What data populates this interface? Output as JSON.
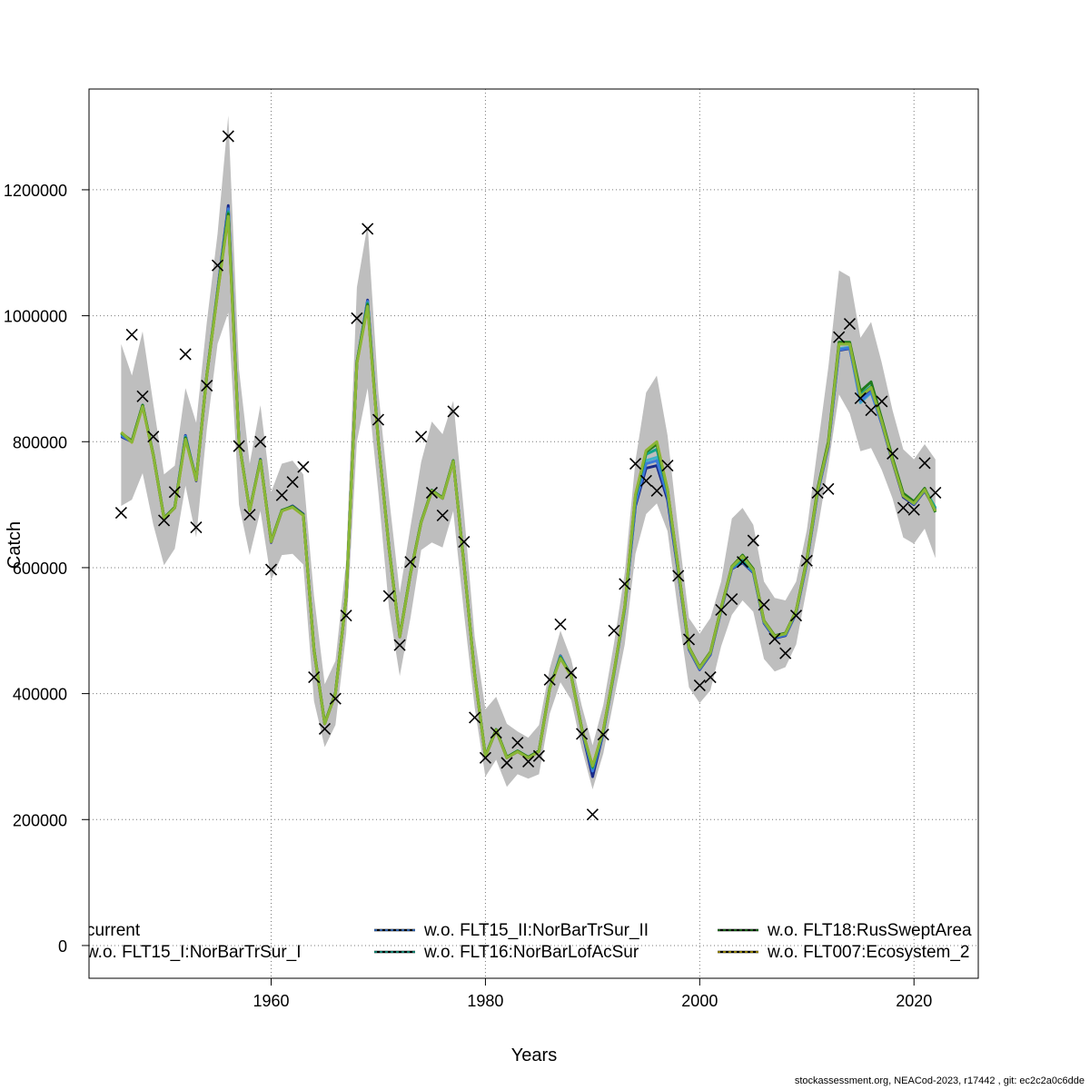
{
  "chart_data": {
    "type": "line",
    "xlabel": "Years",
    "ylabel": "Catch",
    "xlim": [
      1943,
      2026
    ],
    "ylim": [
      -52000,
      1360000
    ],
    "xticks": [
      1960,
      1980,
      2000,
      2020
    ],
    "yticks": [
      0,
      200000,
      400000,
      600000,
      800000,
      1000000,
      1200000
    ],
    "ytick_labels": [
      "0",
      "200000",
      "400000",
      "600000",
      "800000",
      "1000000",
      "1200000"
    ],
    "grid": true,
    "grid_style": "dotted",
    "legend_position": "bottom",
    "colors": {
      "band": "#bebebe",
      "observed": "#000000",
      "current": "#1a2a8a",
      "FLT15_I": "#3fb0c8",
      "FLT15_II": "#3c7ad8",
      "FLT16": "#13a38c",
      "FLT18": "#1e7a1e",
      "FLT007": "#b5a000",
      "visible_top": "#86b83a"
    },
    "years": [
      1946,
      1947,
      1948,
      1949,
      1950,
      1951,
      1952,
      1953,
      1954,
      1955,
      1956,
      1957,
      1958,
      1959,
      1960,
      1961,
      1962,
      1963,
      1964,
      1965,
      1966,
      1967,
      1968,
      1969,
      1970,
      1971,
      1972,
      1973,
      1974,
      1975,
      1976,
      1977,
      1978,
      1979,
      1980,
      1981,
      1982,
      1983,
      1984,
      1985,
      1986,
      1987,
      1988,
      1989,
      1990,
      1991,
      1992,
      1993,
      1994,
      1995,
      1996,
      1997,
      1998,
      1999,
      2000,
      2001,
      2002,
      2003,
      2004,
      2005,
      2006,
      2007,
      2008,
      2009,
      2010,
      2011,
      2012,
      2013,
      2014,
      2015,
      2016,
      2017,
      2018,
      2019,
      2020,
      2021,
      2022
    ],
    "band_upper": [
      955000,
      905000,
      975000,
      860000,
      748000,
      762000,
      885000,
      830000,
      990000,
      1130000,
      1318000,
      915000,
      765000,
      858000,
      720000,
      765000,
      770000,
      748000,
      555000,
      415000,
      452000,
      610000,
      1045000,
      1145000,
      880000,
      712000,
      560000,
      665000,
      768000,
      832000,
      812000,
      865000,
      688000,
      490000,
      375000,
      395000,
      352000,
      340000,
      330000,
      350000,
      440000,
      500000,
      455000,
      380000,
      318000,
      382000,
      480000,
      592000,
      770000,
      878000,
      905000,
      810000,
      660000,
      520000,
      495000,
      520000,
      578000,
      678000,
      695000,
      668000,
      578000,
      552000,
      548000,
      578000,
      660000,
      790000,
      918000,
      1072000,
      1062000,
      965000,
      990000,
      925000,
      850000,
      788000,
      772000,
      796000,
      772000
    ],
    "band_lower": [
      698000,
      708000,
      750000,
      668000,
      604000,
      630000,
      730000,
      648000,
      820000,
      955000,
      1005000,
      700000,
      620000,
      690000,
      580000,
      620000,
      622000,
      605000,
      388000,
      315000,
      350000,
      495000,
      800000,
      885000,
      720000,
      535000,
      428000,
      520000,
      628000,
      640000,
      632000,
      690000,
      528000,
      378000,
      268000,
      295000,
      252000,
      272000,
      265000,
      272000,
      368000,
      418000,
      390000,
      312000,
      248000,
      305000,
      392000,
      478000,
      622000,
      685000,
      702000,
      658000,
      528000,
      410000,
      385000,
      405000,
      475000,
      525000,
      548000,
      530000,
      455000,
      435000,
      442000,
      478000,
      568000,
      660000,
      762000,
      875000,
      845000,
      785000,
      790000,
      755000,
      710000,
      648000,
      638000,
      662000,
      615000
    ],
    "series": [
      {
        "name": "current",
        "values": [
          808000,
          800000,
          858000,
          778000,
          678000,
          695000,
          810000,
          738000,
          905000,
          1040000,
          1175000,
          800000,
          690000,
          772000,
          640000,
          690000,
          698000,
          685000,
          468000,
          352000,
          400000,
          552000,
          925000,
          1025000,
          800000,
          630000,
          490000,
          590000,
          672000,
          722000,
          710000,
          770000,
          605000,
          430000,
          300000,
          342000,
          298000,
          308000,
          298000,
          308000,
          408000,
          460000,
          428000,
          342000,
          268000,
          338000,
          432000,
          535000,
          698000,
          758000,
          762000,
          708000,
          592000,
          470000,
          438000,
          462000,
          532000,
          598000,
          608000,
          592000,
          512000,
          488000,
          492000,
          528000,
          608000,
          718000,
          792000,
          945000,
          948000,
          868000,
          880000,
          828000,
          768000,
          712000,
          700000,
          722000,
          692000
        ]
      },
      {
        "name": "w.o. FLT15_I:NorBarTrSur_I",
        "values": [
          812000,
          801000,
          857000,
          779000,
          679000,
          696000,
          808000,
          740000,
          906000,
          1038000,
          1168000,
          800000,
          691000,
          771000,
          642000,
          691000,
          697000,
          684000,
          470000,
          353000,
          401000,
          553000,
          926000,
          1022000,
          801000,
          631000,
          491000,
          591000,
          673000,
          723000,
          711000,
          770000,
          606000,
          431000,
          301000,
          343000,
          299000,
          309000,
          299000,
          309000,
          409000,
          459000,
          429000,
          344000,
          280000,
          340000,
          433000,
          536000,
          705000,
          770000,
          775000,
          718000,
          596000,
          472000,
          440000,
          464000,
          534000,
          600000,
          610000,
          594000,
          514000,
          490000,
          494000,
          530000,
          610000,
          720000,
          795000,
          948000,
          950000,
          862000,
          878000,
          830000,
          770000,
          715000,
          703000,
          724000,
          694000
        ]
      },
      {
        "name": "w.o. FLT15_II:NorBarTrSur_II",
        "values": [
          810000,
          800000,
          858000,
          778000,
          678000,
          695000,
          809000,
          739000,
          905000,
          1039000,
          1170000,
          800000,
          690000,
          771000,
          641000,
          690000,
          697000,
          684000,
          469000,
          352000,
          400000,
          552000,
          925000,
          1023000,
          800000,
          630000,
          490000,
          590000,
          672000,
          722000,
          710000,
          770000,
          605000,
          430000,
          300000,
          342000,
          298000,
          308000,
          298000,
          308000,
          408000,
          458000,
          428000,
          343000,
          277000,
          339000,
          432000,
          535000,
          702000,
          765000,
          770000,
          714000,
          594000,
          471000,
          439000,
          463000,
          533000,
          599000,
          609000,
          593000,
          513000,
          489000,
          493000,
          529000,
          609000,
          719000,
          793000,
          946000,
          949000,
          865000,
          879000,
          829000,
          769000,
          714000,
          701000,
          723000,
          693000
        ]
      },
      {
        "name": "w.o. FLT16:NorBarLofAcSur",
        "values": [
          813000,
          801000,
          858000,
          779000,
          679000,
          696000,
          807000,
          740000,
          906000,
          1037000,
          1165000,
          800000,
          691000,
          771000,
          642000,
          691000,
          697000,
          684000,
          470000,
          353000,
          401000,
          553000,
          926000,
          1020000,
          801000,
          631000,
          491000,
          591000,
          673000,
          723000,
          711000,
          770000,
          606000,
          431000,
          301000,
          343000,
          299000,
          309000,
          299000,
          309000,
          409000,
          458000,
          429000,
          344000,
          282000,
          341000,
          434000,
          537000,
          712000,
          780000,
          788000,
          722000,
          598000,
          473000,
          441000,
          465000,
          535000,
          601000,
          612000,
          595000,
          515000,
          491000,
          495000,
          531000,
          612000,
          722000,
          798000,
          955000,
          955000,
          875000,
          888000,
          833000,
          772000,
          716000,
          704000,
          725000,
          695000
        ]
      },
      {
        "name": "w.o. FLT18:RusSweptArea",
        "values": [
          814000,
          801000,
          858000,
          779000,
          679000,
          696000,
          806000,
          740000,
          906000,
          1036000,
          1162000,
          800000,
          691000,
          771000,
          642000,
          691000,
          697000,
          684000,
          470000,
          353000,
          401000,
          553000,
          926000,
          1018000,
          801000,
          631000,
          491000,
          591000,
          673000,
          723000,
          711000,
          770000,
          606000,
          431000,
          301000,
          343000,
          299000,
          309000,
          299000,
          309000,
          409000,
          457000,
          429000,
          344000,
          284000,
          342000,
          435000,
          538000,
          715000,
          784000,
          796000,
          724000,
          599000,
          474000,
          442000,
          466000,
          536000,
          602000,
          620000,
          598000,
          516000,
          492000,
          496000,
          532000,
          614000,
          725000,
          800000,
          958000,
          958000,
          880000,
          895000,
          836000,
          774000,
          718000,
          705000,
          726000,
          688000
        ]
      },
      {
        "name": "w.o. FLT007:Ecosystem_2",
        "values": [
          815000,
          799000,
          856000,
          778000,
          678000,
          695000,
          804000,
          739000,
          905000,
          1035000,
          1158000,
          799000,
          690000,
          770000,
          641000,
          690000,
          696000,
          683000,
          469000,
          352000,
          400000,
          552000,
          924000,
          1015000,
          800000,
          630000,
          490000,
          590000,
          672000,
          722000,
          710000,
          769000,
          605000,
          430000,
          300000,
          342000,
          298000,
          308000,
          298000,
          308000,
          408000,
          456000,
          428000,
          343000,
          285000,
          342000,
          434000,
          538000,
          716000,
          786000,
          800000,
          724000,
          598000,
          473000,
          441000,
          465000,
          535000,
          601000,
          618000,
          596000,
          515000,
          491000,
          495000,
          531000,
          612000,
          722000,
          796000,
          955000,
          955000,
          872000,
          886000,
          832000,
          770000,
          714000,
          702000,
          724000,
          690000
        ]
      }
    ],
    "observed": {
      "x": [
        1946,
        1947,
        1948,
        1949,
        1950,
        1951,
        1952,
        1953,
        1954,
        1955,
        1956,
        1957,
        1958,
        1959,
        1960,
        1961,
        1962,
        1963,
        1964,
        1965,
        1966,
        1967,
        1968,
        1969,
        1970,
        1971,
        1972,
        1973,
        1974,
        1975,
        1976,
        1977,
        1978,
        1979,
        1980,
        1981,
        1982,
        1983,
        1984,
        1985,
        1986,
        1987,
        1988,
        1989,
        1990,
        1991,
        1992,
        1993,
        1994,
        1995,
        1996,
        1997,
        1998,
        1999,
        2000,
        2001,
        2002,
        2003,
        2004,
        2005,
        2006,
        2007,
        2008,
        2009,
        2010,
        2011,
        2012,
        2013,
        2014,
        2015,
        2016,
        2017,
        2018,
        2019,
        2020,
        2021,
        2022
      ],
      "y": [
        687000,
        970000,
        872000,
        808000,
        675000,
        720000,
        939000,
        664000,
        889000,
        1080000,
        1285000,
        793000,
        684000,
        800000,
        597000,
        715000,
        736000,
        760000,
        426000,
        344000,
        392000,
        524000,
        996000,
        1138000,
        835000,
        555000,
        477000,
        609000,
        808000,
        719000,
        683000,
        848000,
        641000,
        362000,
        298000,
        338000,
        290000,
        322000,
        292000,
        301000,
        422000,
        510000,
        433000,
        336000,
        208000,
        335000,
        500000,
        574000,
        765000,
        738000,
        722000,
        762000,
        587000,
        486000,
        413000,
        426000,
        533000,
        550000,
        609000,
        643000,
        541000,
        487000,
        464000,
        524000,
        611000,
        719000,
        725000,
        966000,
        987000,
        869000,
        850000,
        864000,
        781000,
        695000,
        692000,
        766000,
        719000
      ]
    },
    "legend": [
      {
        "label": "current",
        "key": "current",
        "style": "solid"
      },
      {
        "label": "w.o. FLT15_I:NorBarTrSur_I",
        "key": "FLT15_I",
        "style": "solid"
      },
      {
        "label": "w.o. FLT15_II:NorBarTrSur_II",
        "key": "FLT15_II",
        "style": "dashed"
      },
      {
        "label": "w.o. FLT16:NorBarLofAcSur",
        "key": "FLT16",
        "style": "dashed"
      },
      {
        "label": "w.o. FLT18:RusSweptArea",
        "key": "FLT18",
        "style": "dashed"
      },
      {
        "label": "w.o. FLT007:Ecosystem_2",
        "key": "FLT007",
        "style": "dashed"
      }
    ]
  },
  "footer": "stockassessment.org, NEACod-2023, r17442 , git: ec2c2a0c6dde"
}
